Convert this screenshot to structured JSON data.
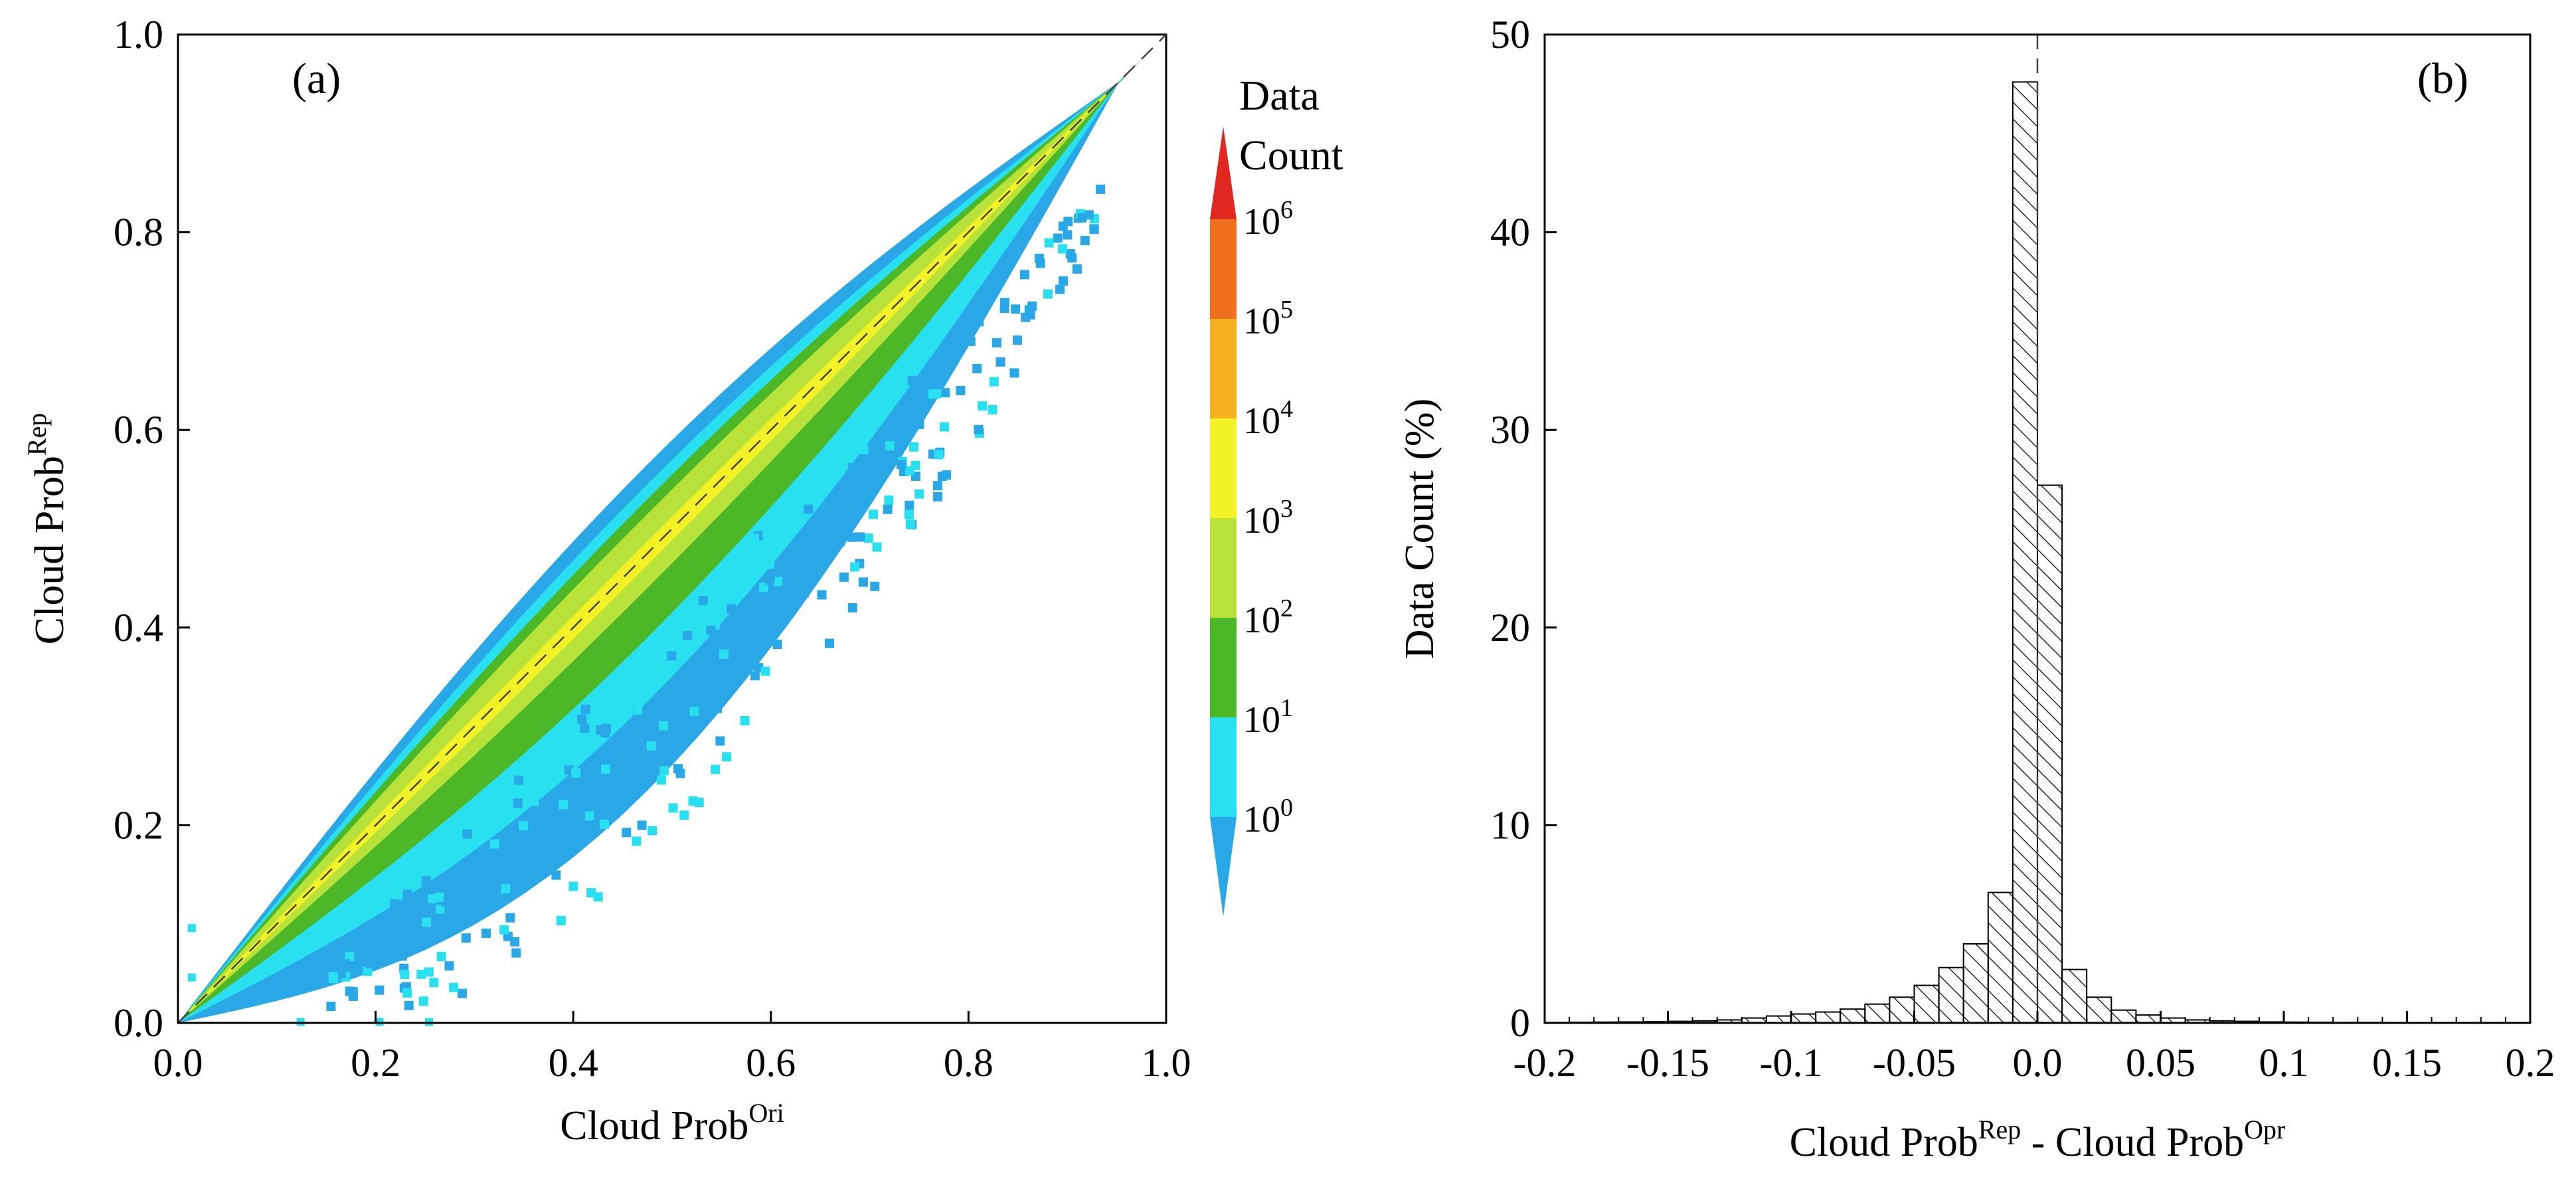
{
  "chart_data": [
    {
      "panel": "(a)",
      "type": "heatmap",
      "xlabel_main": "Cloud Prob",
      "xlabel_sup": "Ori",
      "ylabel_main": "Cloud Prob",
      "ylabel_sup": "Rep",
      "xlim": [
        0.0,
        1.0
      ],
      "ylim": [
        0.0,
        1.0
      ],
      "x_ticks": [
        "0.0",
        "0.2",
        "0.4",
        "0.6",
        "0.8",
        "1.0"
      ],
      "y_ticks": [
        "0.0",
        "0.2",
        "0.4",
        "0.6",
        "0.8",
        "1.0"
      ],
      "x_tick_values": [
        0.0,
        0.2,
        0.4,
        0.6,
        0.8,
        1.0
      ],
      "y_tick_values": [
        0.0,
        0.2,
        0.4,
        0.6,
        0.8,
        1.0
      ],
      "reference_line": "y = x (dashed)",
      "colorbar": {
        "title_line1": "Data",
        "title_line2": "Count",
        "scale": "log10",
        "labels": [
          {
            "base": "10",
            "exp": "0",
            "value": 1
          },
          {
            "base": "10",
            "exp": "1",
            "value": 10
          },
          {
            "base": "10",
            "exp": "2",
            "value": 100
          },
          {
            "base": "10",
            "exp": "3",
            "value": 1000
          },
          {
            "base": "10",
            "exp": "4",
            "value": 10000
          },
          {
            "base": "10",
            "exp": "5",
            "value": 100000
          },
          {
            "base": "10",
            "exp": "6",
            "value": 1000000
          }
        ],
        "colors": [
          "#2aa7e6",
          "#28e0f0",
          "#4cb828",
          "#b8e23a",
          "#f2f227",
          "#f5b020",
          "#f07020",
          "#e02820"
        ]
      },
      "density_bands": [
        {
          "level": "1-10",
          "color": "#2aa7e6",
          "below": 0.24,
          "above": 0.09
        },
        {
          "level": "10-100",
          "color": "#28e0f0",
          "below": 0.15,
          "above": 0.07
        },
        {
          "level": "100-1000",
          "color": "#4cb828",
          "below": 0.085,
          "above": 0.055
        },
        {
          "level": "1000-10000",
          "color": "#b8e23a",
          "below": 0.035,
          "above": 0.04
        },
        {
          "level": "10000-100000",
          "color": "#f2f227",
          "below": 0.012,
          "above": 0.012
        }
      ]
    },
    {
      "panel": "(b)",
      "type": "bar",
      "xlabel_main1": "Cloud Prob",
      "xlabel_sup1": "Rep",
      "xlabel_mid": " - Cloud Prob",
      "xlabel_sup2": "Opr",
      "ylabel": "Data Count (%)",
      "xlim": [
        -0.2,
        0.2
      ],
      "ylim": [
        0,
        50
      ],
      "bin_width": 0.01,
      "x_ticks": [
        "-0.2",
        "-0.15",
        "-0.1",
        "-0.05",
        "0.0",
        "0.05",
        "0.1",
        "0.15",
        "0.2"
      ],
      "x_tick_values": [
        -0.2,
        -0.15,
        -0.1,
        -0.05,
        0.0,
        0.05,
        0.1,
        0.15,
        0.2
      ],
      "y_ticks": [
        "0",
        "10",
        "20",
        "30",
        "40",
        "50"
      ],
      "y_tick_values": [
        0,
        10,
        20,
        30,
        40,
        50
      ],
      "reference_line": "x = 0 (dashed)",
      "categories": [
        -0.195,
        -0.185,
        -0.175,
        -0.165,
        -0.155,
        -0.145,
        -0.135,
        -0.125,
        -0.115,
        -0.105,
        -0.095,
        -0.085,
        -0.075,
        -0.065,
        -0.055,
        -0.045,
        -0.035,
        -0.025,
        -0.015,
        -0.005,
        0.005,
        0.015,
        0.025,
        0.035,
        0.045,
        0.055,
        0.065,
        0.075,
        0.085,
        0.095,
        0.105,
        0.115,
        0.125,
        0.135,
        0.145,
        0.155,
        0.165,
        0.175,
        0.185,
        0.195
      ],
      "values": [
        0.02,
        0.03,
        0.04,
        0.05,
        0.06,
        0.08,
        0.1,
        0.15,
        0.25,
        0.35,
        0.45,
        0.55,
        0.7,
        0.95,
        1.3,
        1.9,
        2.8,
        4.0,
        6.6,
        47.6,
        27.2,
        2.7,
        1.3,
        0.65,
        0.4,
        0.25,
        0.15,
        0.1,
        0.08,
        0.05,
        0.04,
        0.03,
        0.02,
        0.02,
        0.01,
        0.01,
        0.01,
        0.01,
        0.01,
        0.01
      ]
    }
  ]
}
